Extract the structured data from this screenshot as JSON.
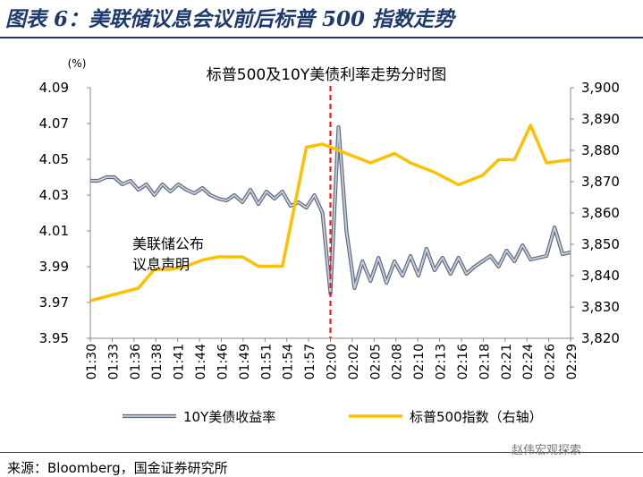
{
  "figure_title": "图表 6：美联储议息会议前后标普 500 指数走势",
  "source": "来源：Bloomberg，国金证券研究所",
  "watermark": "赵伟宏观探索",
  "colors": {
    "series1": "#8a94a8",
    "series2": "#ffc000",
    "vline": "#e02020",
    "title": "#1f3a6e"
  },
  "chart_data": {
    "type": "line",
    "title": "标普500及10Y美债利率走势分时图",
    "left_unit": "(%)",
    "ylim_left": [
      3.95,
      4.09
    ],
    "yticks_left": [
      "4.09",
      "4.07",
      "4.05",
      "4.03",
      "4.01",
      "3.99",
      "3.97",
      "3.95"
    ],
    "ylim_right": [
      3820,
      3900
    ],
    "yticks_right": [
      "3,900",
      "3,890",
      "3,880",
      "3,870",
      "3,860",
      "3,850",
      "3,840",
      "3,830",
      "3,820"
    ],
    "x_ticks": [
      "01:30",
      "01:33",
      "01:36",
      "01:38",
      "01:41",
      "01:44",
      "01:46",
      "01:49",
      "01:51",
      "01:54",
      "01:57",
      "02:00",
      "02:02",
      "02:05",
      "02:08",
      "02:10",
      "02:13",
      "02:16",
      "02:18",
      "02:21",
      "02:24",
      "02:26",
      "02:29"
    ],
    "x_start_min": 90,
    "x_end_min": 150,
    "vline_time": "02:00",
    "annotation": "美联储公布\n议息声明",
    "legend": [
      "10Y美债收益率",
      "标普500指数（右轴）"
    ],
    "series": [
      {
        "name": "10Y美债收益率",
        "axis": "left",
        "x": [
          "01:30",
          "01:31",
          "01:32",
          "01:33",
          "01:34",
          "01:35",
          "01:36",
          "01:37",
          "01:38",
          "01:39",
          "01:40",
          "01:41",
          "01:42",
          "01:43",
          "01:44",
          "01:45",
          "01:46",
          "01:47",
          "01:48",
          "01:49",
          "01:50",
          "01:51",
          "01:52",
          "01:53",
          "01:54",
          "01:55",
          "01:56",
          "01:57",
          "01:58",
          "01:59",
          "02:00",
          "02:01",
          "02:02",
          "02:03",
          "02:04",
          "02:05",
          "02:06",
          "02:07",
          "02:08",
          "02:09",
          "02:10",
          "02:11",
          "02:12",
          "02:13",
          "02:14",
          "02:15",
          "02:16",
          "02:17",
          "02:18",
          "02:19",
          "02:20",
          "02:21",
          "02:22",
          "02:23",
          "02:24",
          "02:25",
          "02:26",
          "02:27",
          "02:28",
          "02:29",
          "02:30"
        ],
        "values": [
          4.038,
          4.038,
          4.04,
          4.04,
          4.036,
          4.038,
          4.033,
          4.036,
          4.03,
          4.036,
          4.032,
          4.036,
          4.033,
          4.031,
          4.034,
          4.03,
          4.028,
          4.027,
          4.03,
          4.026,
          4.033,
          4.025,
          4.032,
          4.028,
          4.032,
          4.024,
          4.026,
          4.023,
          4.03,
          4.02,
          3.975,
          4.068,
          4.01,
          3.978,
          3.993,
          3.982,
          3.995,
          3.981,
          3.993,
          3.985,
          3.996,
          3.985,
          4.0,
          3.988,
          3.995,
          3.986,
          3.995,
          3.986,
          3.99,
          3.993,
          3.996,
          3.99,
          3.999,
          3.993,
          4.002,
          3.994,
          3.995,
          3.996,
          4.012,
          3.997,
          3.998
        ]
      },
      {
        "name": "标普500指数（右轴）",
        "axis": "right",
        "x": [
          "01:30",
          "01:33",
          "01:36",
          "01:38",
          "01:40",
          "01:42",
          "01:44",
          "01:46",
          "01:49",
          "01:51",
          "01:54",
          "01:57",
          "01:59",
          "02:00",
          "02:05",
          "02:08",
          "02:10",
          "02:13",
          "02:16",
          "02:19",
          "02:21",
          "02:23",
          "02:25",
          "02:27",
          "02:30"
        ],
        "values": [
          3832,
          3834,
          3836,
          3842,
          3842,
          3843,
          3845,
          3846,
          3846,
          3843,
          3843,
          3881,
          3882,
          3881,
          3876,
          3879,
          3876,
          3873,
          3869,
          3872,
          3877,
          3877,
          3888,
          3876,
          3877
        ]
      }
    ]
  }
}
